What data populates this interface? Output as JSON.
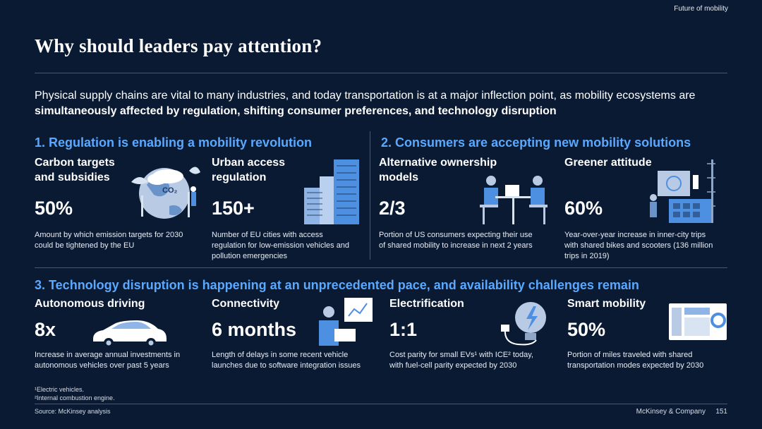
{
  "header": {
    "tag": "Future of mobility"
  },
  "title": "Why should leaders pay attention?",
  "intro": {
    "plain": "Physical supply chains are vital to many industries, and today transportation is at a major inflection point, as mobility ecosystems are ",
    "bold": "simultaneously affected by regulation, shifting consumer preferences, and technology disruption"
  },
  "section1": {
    "heading": "1. Regulation is enabling a mobility revolution",
    "cards": [
      {
        "title1": "Carbon targets",
        "title2": "and subsidies",
        "value": "50%",
        "desc1": "Amount by which emission targets for 2030",
        "desc2": "could be tightened by the EU",
        "icon_label": "CO₂"
      },
      {
        "title1": "Urban access",
        "title2": "regulation",
        "value": "150+",
        "desc1": "Number of EU cities with access",
        "desc2": "regulation for low-emission vehicles and",
        "desc3": "pollution emergencies"
      }
    ]
  },
  "section2": {
    "heading": "2. Consumers are accepting new mobility solutions",
    "cards": [
      {
        "title1": "Alternative ownership",
        "title2": "models",
        "value": "2/3",
        "desc1": "Portion of US consumers expecting their use",
        "desc2": "of shared mobility to increase in next 2 years"
      },
      {
        "title1": "Greener attitude",
        "value": "60%",
        "desc1": "Year-over-year increase in inner-city trips",
        "desc2": "with shared bikes and scooters (136 million",
        "desc3": "trips in 2019)"
      }
    ]
  },
  "section3": {
    "heading": "3. Technology disruption is happening at an unprecedented pace, and availability challenges remain",
    "cards": [
      {
        "title": "Autonomous driving",
        "value": "8x",
        "desc1": "Increase in average annual investments in",
        "desc2": "autonomous vehicles over past 5 years"
      },
      {
        "title": "Connectivity",
        "value": "6 months",
        "desc1": "Length of delays in some recent vehicle",
        "desc2": "launches due to software integration issues"
      },
      {
        "title": "Electrification",
        "value": "1:1",
        "desc1": "Cost parity for small EVs¹ with ICE² today,",
        "desc2": "with fuel-cell parity expected by 2030"
      },
      {
        "title": "Smart mobility",
        "value": "50%",
        "desc1": "Portion of miles traveled with shared",
        "desc2": "transportation modes expected by 2030"
      }
    ]
  },
  "footnotes": {
    "note1": "¹Electric vehicles.",
    "note2": "²Internal combustion engine."
  },
  "footer": {
    "source": "Source: McKinsey analysis",
    "company": "McKinsey & Company",
    "page": "151"
  },
  "colors": {
    "background": "#0a1a33",
    "accent": "#5aa9ff",
    "illustration": "#4d8fe0"
  }
}
